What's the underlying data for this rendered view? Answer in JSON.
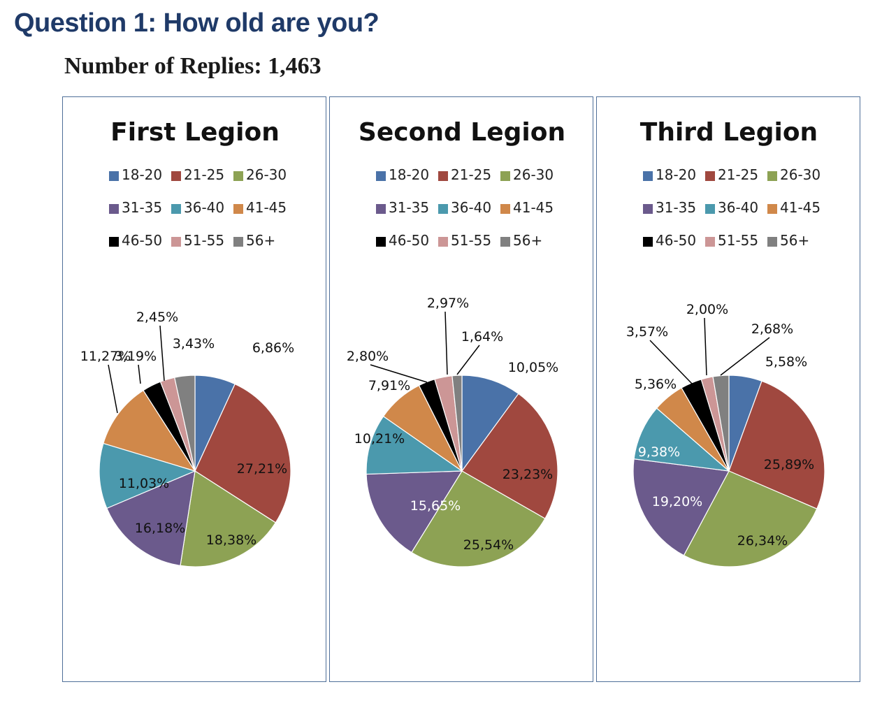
{
  "header": {
    "title": "Question 1: How old are you?",
    "subtitle": "Number of Replies: 1,463"
  },
  "colors": {
    "18-20": "#4a72a8",
    "21-25": "#a0483f",
    "26-30": "#8da254",
    "31-35": "#6b5a8c",
    "36-40": "#4b99ad",
    "41-45": "#d0884a",
    "46-50": "#000000",
    "51-55": "#cc9696",
    "56+": "#808080"
  },
  "chart_data": [
    {
      "type": "pie",
      "title": "First Legion",
      "legend_placement": "top",
      "categories": [
        "18-20",
        "21-25",
        "26-30",
        "31-35",
        "36-40",
        "41-45",
        "46-50",
        "51-55",
        "56+"
      ],
      "values": [
        6.86,
        27.21,
        18.38,
        16.18,
        11.03,
        11.27,
        3.19,
        2.45,
        3.43
      ],
      "labels": [
        "6,86%",
        "27,21%",
        "18,38%",
        "16,18%",
        "11,03%",
        "11,27%",
        "3,19%",
        "2,45%",
        "3,43%"
      ]
    },
    {
      "type": "pie",
      "title": "Second Legion",
      "legend_placement": "top",
      "categories": [
        "18-20",
        "21-25",
        "26-30",
        "31-35",
        "36-40",
        "41-45",
        "46-50",
        "51-55",
        "56+"
      ],
      "values": [
        10.05,
        23.23,
        25.54,
        15.65,
        10.21,
        7.91,
        2.8,
        2.97,
        1.64
      ],
      "labels": [
        "10,05%",
        "23,23%",
        "25,54%",
        "15,65%",
        "10,21%",
        "7,91%",
        "2,80%",
        "2,97%",
        "1,64%"
      ]
    },
    {
      "type": "pie",
      "title": "Third Legion",
      "legend_placement": "top",
      "categories": [
        "18-20",
        "21-25",
        "26-30",
        "31-35",
        "36-40",
        "41-45",
        "46-50",
        "51-55",
        "56+"
      ],
      "values": [
        5.58,
        25.89,
        26.34,
        19.2,
        9.38,
        5.36,
        3.57,
        2.0,
        2.68
      ],
      "labels": [
        "5,58%",
        "25,89%",
        "26,34%",
        "19,20%",
        "9,38%",
        "5,36%",
        "3,57%",
        "2,00%",
        "2,68%"
      ]
    }
  ]
}
